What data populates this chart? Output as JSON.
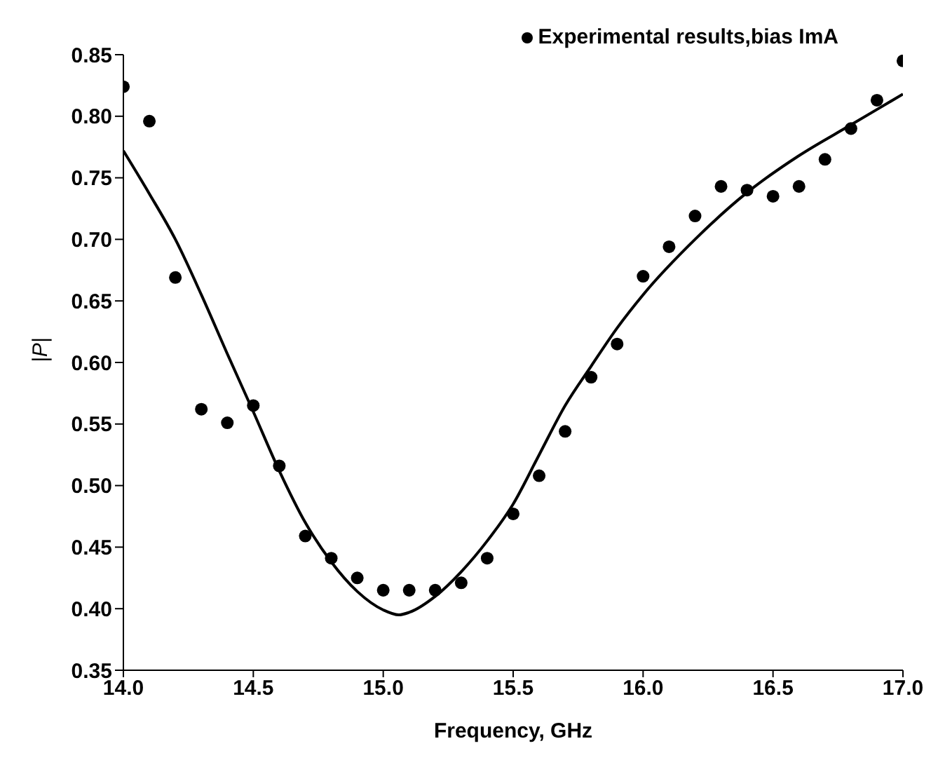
{
  "chart_data": {
    "type": "scatter",
    "xlabel": "Frequency, GHz",
    "ylabel": "|P|",
    "xlim": [
      14.0,
      17.0
    ],
    "ylim": [
      0.35,
      0.85
    ],
    "xticks": [
      {
        "value": 14.0,
        "label": "14.0"
      },
      14.5,
      {
        "value": 15.0,
        "label": "15.0"
      },
      15.5,
      {
        "value": 16.0,
        "label": "16.0"
      },
      16.5,
      {
        "value": 17.0,
        "label": "17.0"
      }
    ],
    "yticks": [
      0.35,
      {
        "value": 0.4,
        "label": "0.40"
      },
      0.45,
      {
        "value": 0.5,
        "label": "0.50"
      },
      0.55,
      {
        "value": 0.6,
        "label": "0.60"
      },
      0.65,
      {
        "value": 0.7,
        "label": "0.70"
      },
      0.75,
      {
        "value": 0.8,
        "label": "0.80"
      },
      0.85
    ],
    "grid": false,
    "legend": "top right",
    "series": [
      {
        "name": "Experimental results,bias ImA",
        "marker": "circle",
        "color": "#000000",
        "x": [
          14.0,
          14.1,
          14.2,
          14.3,
          14.4,
          14.5,
          14.6,
          14.7,
          14.8,
          14.9,
          15.0,
          15.1,
          15.2,
          15.3,
          15.4,
          15.5,
          15.6,
          15.7,
          15.8,
          15.9,
          16.0,
          16.1,
          16.2,
          16.3,
          16.4,
          16.5,
          16.6,
          16.7,
          16.8,
          16.9,
          17.0
        ],
        "values": [
          0.824,
          0.796,
          0.669,
          0.562,
          0.551,
          0.565,
          0.516,
          0.459,
          0.441,
          0.425,
          0.415,
          0.415,
          0.415,
          0.421,
          0.441,
          0.477,
          0.508,
          0.544,
          0.588,
          0.615,
          0.67,
          0.694,
          0.719,
          0.743,
          0.74,
          0.735,
          0.743,
          0.765,
          0.79,
          0.813,
          0.845
        ]
      },
      {
        "type": "line",
        "marker": "none",
        "color": "#000000",
        "x": [
          14.0,
          14.1,
          14.2,
          14.3,
          14.4,
          14.5,
          14.6,
          14.7,
          14.8,
          14.9,
          15.0,
          15.06,
          15.1,
          15.2,
          15.3,
          15.4,
          15.5,
          15.6,
          15.7,
          15.8,
          15.9,
          16.0,
          16.2,
          16.4,
          16.6,
          16.8,
          17.0
        ],
        "values": [
          0.772,
          0.737,
          0.7,
          0.655,
          0.607,
          0.56,
          0.512,
          0.47,
          0.438,
          0.414,
          0.399,
          0.395,
          0.397,
          0.41,
          0.43,
          0.455,
          0.485,
          0.525,
          0.565,
          0.597,
          0.628,
          0.655,
          0.7,
          0.738,
          0.768,
          0.793,
          0.818
        ]
      }
    ]
  }
}
